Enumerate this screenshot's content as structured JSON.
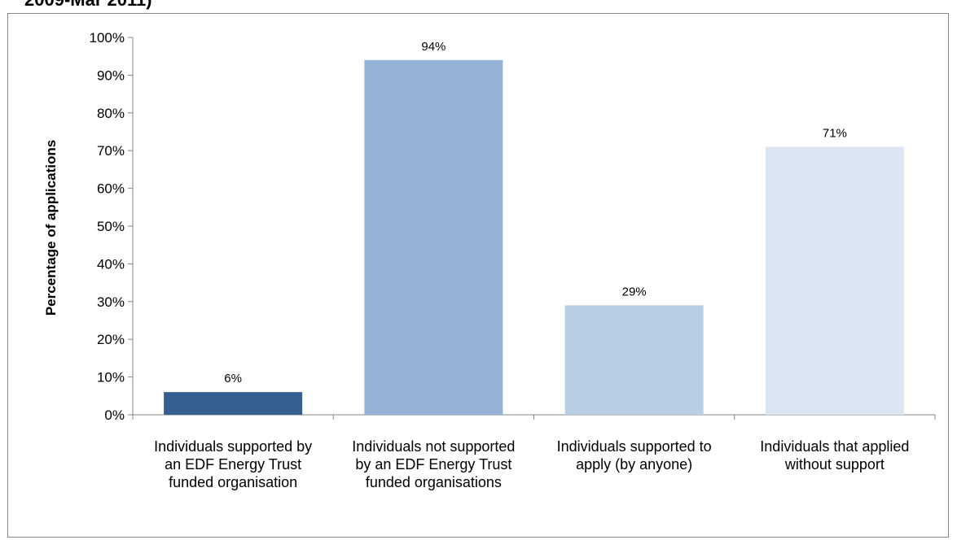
{
  "header": {
    "title_fragment": "2009-Mar 2011)"
  },
  "chart_data": {
    "type": "bar",
    "ylabel": "Percentage of applications",
    "xlabel": "",
    "ylim": [
      0,
      100
    ],
    "y_ticks": [
      "0%",
      "10%",
      "20%",
      "30%",
      "40%",
      "50%",
      "60%",
      "70%",
      "80%",
      "90%",
      "100%"
    ],
    "categories": [
      "Individuals supported  by\nan EDF Energy Trust\nfunded organisation",
      "Individuals not supported\nby an EDF Energy Trust\nfunded organisations",
      "Individuals supported to\napply (by anyone)",
      "Individuals that applied\nwithout support"
    ],
    "values": [
      6,
      94,
      29,
      71
    ],
    "data_labels": [
      "6%",
      "94%",
      "29%",
      "71%"
    ],
    "bar_colors": [
      "#365f91",
      "#95b3d7",
      "#b9cde5",
      "#dce6f2"
    ],
    "grid": false,
    "legend": "none"
  }
}
